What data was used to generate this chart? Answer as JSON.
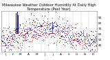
{
  "title": "Milwaukee Weather Outdoor Humidity At Daily High Temperature (Past Year)",
  "background_color": "#ffffff",
  "grid_color": "#bbbbbb",
  "ylim": [
    28,
    102
  ],
  "xlim": [
    0,
    365
  ],
  "blue_color": "#0000dd",
  "red_color": "#dd0000",
  "title_fontsize": 3.8,
  "tick_fontsize": 3.0,
  "num_points": 365,
  "seed": 42,
  "blue_base_mean": 60,
  "blue_base_std": 11,
  "red_base_mean": 57,
  "red_base_std": 11,
  "x_tick_positions": [
    15,
    46,
    74,
    105,
    135,
    166,
    196,
    227,
    258,
    288,
    319,
    349
  ],
  "x_tick_labels": [
    "J",
    "F",
    "M",
    "A",
    "M",
    "J",
    "J",
    "A",
    "S",
    "O",
    "N",
    "D"
  ],
  "ytick_values": [
    40,
    50,
    60,
    70,
    80,
    90
  ],
  "num_grid_lines": 12,
  "grid_x_positions": [
    0,
    30,
    61,
    91,
    122,
    152,
    183,
    213,
    244,
    274,
    305,
    335,
    365
  ],
  "spike_days": [
    57,
    61,
    65
  ],
  "spike_low": 62,
  "spike_vals": [
    98,
    100,
    94
  ],
  "spike2_day": 196,
  "spike2_val": 82,
  "spike2_low": 62,
  "dot_size": 0.4
}
